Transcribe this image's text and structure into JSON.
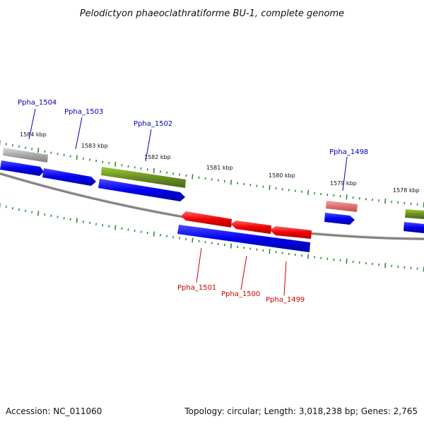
{
  "title": "Pelodictyon phaeoclathratiforme BU-1, complete genome",
  "footer": {
    "accession": "Accession: NC_011060",
    "stats": "Topology: circular; Length: 3,018,238 bp; Genes: 2,765"
  },
  "kbp_labels": [
    "1584 kbp",
    "1583 kbp",
    "1582 kbp",
    "1581 kbp",
    "1580 kbp",
    "1579 kbp",
    "1578 kbp"
  ],
  "gene_labels_forward": [
    "Ppha_1504",
    "Ppha_1503",
    "Ppha_1502",
    "Ppha_1498"
  ],
  "gene_labels_reverse": [
    "Ppha_1501",
    "Ppha_1500",
    "Ppha_1499"
  ],
  "colors": {
    "forward_label": "#0000bb",
    "reverse_label": "#cc0000",
    "cds": "#0000ee",
    "gene_forward": "#6b8e23",
    "gene_grey": "#a0a0a0",
    "gene_reverse": "#ee0000",
    "gene_pink": "#e07070",
    "backbone": "#808080",
    "tick": "#2e8b2e"
  }
}
